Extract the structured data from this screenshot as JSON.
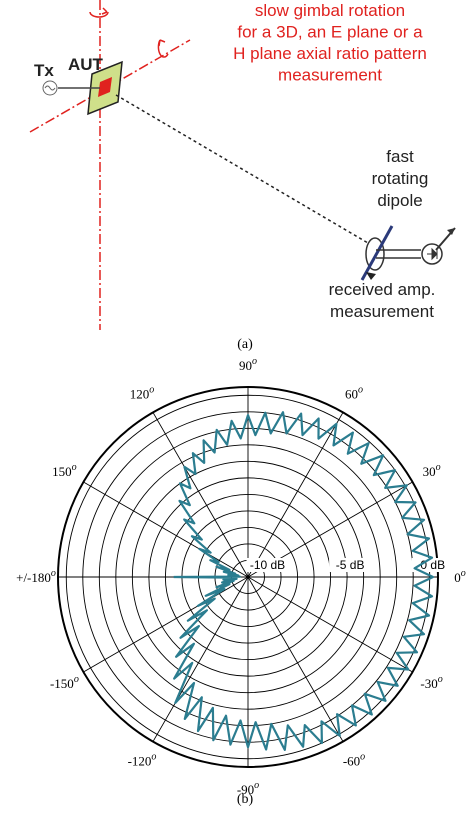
{
  "figure_a": {
    "gimbal_lines": [
      "slow gimbal rotation",
      "for a 3D, an E plane or a",
      "H plane axial ratio pattern",
      "measurement"
    ],
    "tx": "Tx",
    "aut": "AUT",
    "dipole_lines": [
      "fast",
      "rotating",
      "dipole"
    ],
    "received_lines": [
      "received amp.",
      "measurement"
    ],
    "caption": "(a)"
  },
  "chart_data": {
    "type": "polar",
    "color": "#2b7d90",
    "angle_unit": "o",
    "angle_ticks": [
      {
        "value": 0,
        "label": "0"
      },
      {
        "value": 30,
        "label": "30"
      },
      {
        "value": 60,
        "label": "60"
      },
      {
        "value": 90,
        "label": "90"
      },
      {
        "value": 120,
        "label": "120"
      },
      {
        "value": 150,
        "label": "150"
      },
      {
        "value": 180,
        "label": "+/-180"
      },
      {
        "value": -150,
        "label": "-150"
      },
      {
        "value": -120,
        "label": "-120"
      },
      {
        "value": -90,
        "label": "-90"
      },
      {
        "value": -60,
        "label": "-60"
      },
      {
        "value": -30,
        "label": "-30"
      }
    ],
    "rlim": [
      -11,
      0.5
    ],
    "rgrid": [
      -10,
      -9,
      -8,
      -7,
      -6,
      -5,
      -4,
      -3,
      -2,
      -1,
      0
    ],
    "rticks": [
      {
        "value": -10,
        "label": "-10 dB"
      },
      {
        "value": -5,
        "label": "-5 dB"
      },
      {
        "value": 0,
        "label": "0 dB"
      }
    ],
    "x": [
      -180,
      -177,
      -174,
      -171,
      -168,
      -165,
      -162,
      -159,
      -156,
      -153,
      -150,
      -147,
      -144,
      -141,
      -138,
      -135,
      -132,
      -129,
      -126,
      -123,
      -120,
      -117,
      -114,
      -111,
      -108,
      -105,
      -102,
      -99,
      -96,
      -93,
      -90,
      -87,
      -84,
      -81,
      -78,
      -75,
      -72,
      -69,
      -66,
      -63,
      -60,
      -57,
      -54,
      -51,
      -48,
      -45,
      -42,
      -39,
      -36,
      -33,
      -30,
      -27,
      -24,
      -21,
      -18,
      -15,
      -12,
      -9,
      -6,
      -3,
      0,
      3,
      6,
      9,
      12,
      15,
      18,
      21,
      24,
      27,
      30,
      33,
      36,
      39,
      42,
      45,
      48,
      51,
      54,
      57,
      60,
      63,
      66,
      69,
      72,
      75,
      78,
      81,
      84,
      87,
      90,
      93,
      96,
      99,
      102,
      105,
      108,
      111,
      114,
      117,
      120,
      123,
      126,
      129,
      132,
      135,
      138,
      141,
      144,
      147,
      150,
      153,
      156,
      159,
      162,
      165,
      168,
      171,
      174,
      177,
      180
    ],
    "values": [
      -6.5,
      -10.2,
      -9.5,
      -10.3,
      -9.4,
      -10.1,
      -9.0,
      -9.8,
      -8.2,
      -9.4,
      -7.5,
      -8.6,
      -6.5,
      -7.8,
      -5.5,
      -6.8,
      -4.5,
      -5.8,
      -3.4,
      -4.8,
      -2.2,
      -3.8,
      -1.6,
      -3.2,
      -1.2,
      -2.8,
      -0.9,
      -2.5,
      -0.8,
      -2.3,
      -0.7,
      -2.2,
      -0.5,
      -2.0,
      -0.3,
      -1.7,
      -0.2,
      -1.4,
      0.0,
      -1.2,
      0.1,
      -1.1,
      0.1,
      -1.0,
      0.2,
      -1.0,
      0.2,
      -0.9,
      0.2,
      -0.9,
      0.2,
      -0.9,
      0.2,
      -0.9,
      0.2,
      -0.9,
      0.2,
      -0.9,
      0.2,
      -0.9,
      0.2,
      -0.9,
      0.2,
      -0.9,
      0.2,
      -1.0,
      0.2,
      -1.0,
      0.1,
      -1.0,
      0.1,
      -1.1,
      0.0,
      -1.2,
      0.0,
      -1.3,
      -0.1,
      -1.4,
      -0.2,
      -1.5,
      -0.3,
      -1.6,
      -0.5,
      -1.8,
      -0.6,
      -2.0,
      -0.8,
      -2.2,
      -1.0,
      -2.4,
      -1.2,
      -2.6,
      -1.5,
      -2.9,
      -1.9,
      -3.2,
      -2.3,
      -3.6,
      -2.8,
      -4.0,
      -3.3,
      -4.6,
      -4.0,
      -5.4,
      -4.8,
      -6.4,
      -5.8,
      -7.4,
      -6.8,
      -8.3,
      -7.6,
      -9.0,
      -8.5,
      -9.8,
      -9.0,
      -10.2,
      -9.5,
      -10.4,
      -9.8,
      -10.5,
      -6.5
    ]
  },
  "caption_b": "(b)"
}
